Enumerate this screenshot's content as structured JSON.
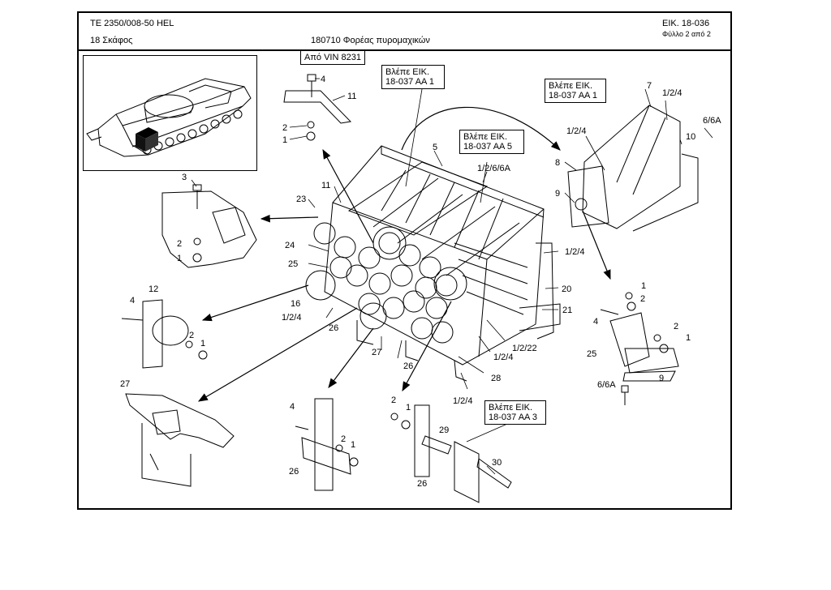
{
  "header": {
    "doc_code": "TE  2350/008-50 HEL",
    "section": "18 Σκάφος",
    "assembly": "180710 Φορέας πυρομαχικών",
    "figure": "ΕΙΚ. 18-036",
    "sheet": "Φύλλο 2 από 2"
  },
  "callouts": {
    "vin": "Από VIN 8231",
    "ref1": [
      "Βλέπε ΕΙΚ.",
      "18-037 AA 1"
    ],
    "ref2": [
      "Βλέπε ΕΙΚ.",
      "18-037 AA 5"
    ],
    "ref3": [
      "Βλέπε ΕΙΚ.",
      "18-037 AA 1"
    ],
    "ref4": [
      "Βλέπε ΕΙΚ.",
      "18-037 AA 3"
    ]
  },
  "labels": {
    "l4a": "4",
    "l11a": "11",
    "l2a": "2",
    "l1a": "1",
    "l5": "5",
    "l1_2_6_6A": "1/2/6/6A",
    "l7": "7",
    "l1_2_4a": "1/2/4",
    "l6_6A": "6/6A",
    "l10": "10",
    "l1_2_4b": "1/2/4",
    "l8": "8",
    "l9": "9",
    "l3": "3",
    "l11b": "11",
    "l23": "23",
    "l2b": "2",
    "l1b": "1",
    "l24": "24",
    "l25": "25",
    "l16": "16",
    "l1_2_4c": "1/2/4",
    "l26a": "26",
    "l12": "12",
    "l4b": "4",
    "l2c": "2",
    "l1c": "1",
    "l1_2_4d": "1/2/4",
    "l20": "20",
    "l21": "21",
    "l1_2_22": "1/2/22",
    "l1_2_4e": "1/2/4",
    "l27a": "27",
    "l26b": "26",
    "l28": "28",
    "l1_2_4f": "1/2/4",
    "l1d": "1",
    "l2d": "2",
    "l4c": "4",
    "l2e": "2",
    "l1e": "1",
    "l25b": "25",
    "l6_6Ab": "6/6A",
    "l9b": "9",
    "l27b": "27",
    "l4d": "4",
    "l2f": "2",
    "l1f": "1",
    "l26c": "26",
    "l2g": "2",
    "l1g": "1",
    "l29": "29",
    "l26d": "26",
    "l30": "30"
  }
}
